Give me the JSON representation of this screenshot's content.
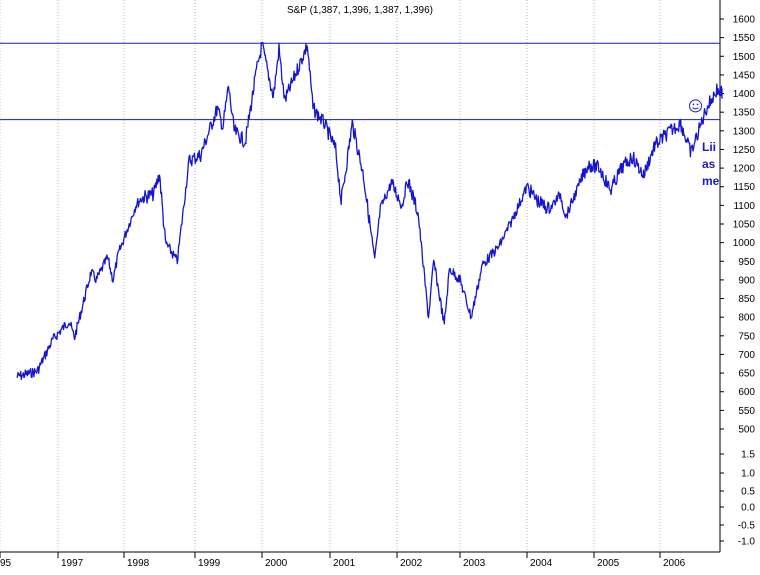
{
  "chart_data": {
    "type": "line",
    "title": "S&P (1,387, 1,396, 1,387, 1,396)",
    "x_ticks": [
      "95",
      "1997",
      "1998",
      "1999",
      "2000",
      "2001",
      "2002",
      "2003",
      "2004",
      "2005",
      "2006"
    ],
    "y_ticks": [
      1600,
      1550,
      1500,
      1450,
      1400,
      1350,
      1300,
      1250,
      1200,
      1150,
      1100,
      1050,
      1000,
      950,
      900,
      850,
      800,
      750,
      700,
      650,
      600,
      550,
      500
    ],
    "y_ticks_lower": [
      "1.5",
      "1.0",
      "0.5",
      "0.0",
      "-0.5",
      "-1.0"
    ],
    "ylim": [
      500,
      1620
    ],
    "grid": "vertical dotted at year boundaries",
    "series": [
      {
        "color": "#1515d0",
        "points": [
          [
            "1996-05",
            640
          ],
          [
            "1996-09",
            655
          ],
          [
            "1996-12",
            740
          ],
          [
            "1997-03",
            790
          ],
          [
            "1997-04",
            745
          ],
          [
            "1997-07",
            920
          ],
          [
            "1997-08",
            900
          ],
          [
            "1997-10",
            960
          ],
          [
            "1997-11",
            900
          ],
          [
            "1997-12",
            970
          ],
          [
            "1998-03",
            1100
          ],
          [
            "1998-04",
            1120
          ],
          [
            "1998-06",
            1130
          ],
          [
            "1998-07",
            1185
          ],
          [
            "1998-08",
            1000
          ],
          [
            "1998-10",
            950
          ],
          [
            "1998-12",
            1220
          ],
          [
            "1999-02",
            1235
          ],
          [
            "1999-05",
            1360
          ],
          [
            "1999-06",
            1310
          ],
          [
            "1999-07",
            1420
          ],
          [
            "1999-08",
            1300
          ],
          [
            "1999-10",
            1270
          ],
          [
            "1999-12",
            1460
          ],
          [
            "2000-01",
            1530
          ],
          [
            "2000-03",
            1390
          ],
          [
            "2000-04",
            1520
          ],
          [
            "2000-05",
            1380
          ],
          [
            "2000-09",
            1530
          ],
          [
            "2000-10",
            1360
          ],
          [
            "2000-12",
            1320
          ],
          [
            "2001-02",
            1250
          ],
          [
            "2001-03",
            1110
          ],
          [
            "2001-05",
            1320
          ],
          [
            "2001-07",
            1180
          ],
          [
            "2001-09",
            950
          ],
          [
            "2001-10",
            1090
          ],
          [
            "2001-12",
            1160
          ],
          [
            "2002-02",
            1100
          ],
          [
            "2002-03",
            1170
          ],
          [
            "2002-05",
            1080
          ],
          [
            "2002-07",
            800
          ],
          [
            "2002-08",
            950
          ],
          [
            "2002-10",
            780
          ],
          [
            "2002-11",
            930
          ],
          [
            "2003-01",
            900
          ],
          [
            "2003-03",
            800
          ],
          [
            "2003-05",
            940
          ],
          [
            "2003-08",
            990
          ],
          [
            "2003-10",
            1050
          ],
          [
            "2004-01",
            1150
          ],
          [
            "2004-03",
            1110
          ],
          [
            "2004-05",
            1090
          ],
          [
            "2004-07",
            1130
          ],
          [
            "2004-08",
            1070
          ],
          [
            "2004-11",
            1180
          ],
          [
            "2004-12",
            1210
          ],
          [
            "2005-02",
            1200
          ],
          [
            "2005-04",
            1140
          ],
          [
            "2005-06",
            1200
          ],
          [
            "2005-08",
            1230
          ],
          [
            "2005-10",
            1180
          ],
          [
            "2005-12",
            1260
          ],
          [
            "2006-03",
            1300
          ],
          [
            "2006-05",
            1320
          ],
          [
            "2006-07",
            1240
          ],
          [
            "2006-10",
            1360
          ],
          [
            "2006-12",
            1410
          ],
          [
            "2007-01",
            1400
          ],
          [
            "2007-02",
            1390
          ]
        ]
      }
    ],
    "hlines": [
      1535,
      1330
    ],
    "smiley": {
      "date": "2006-04",
      "value": 1340
    },
    "note_lines": [
      "Lii",
      "as",
      "me"
    ]
  }
}
